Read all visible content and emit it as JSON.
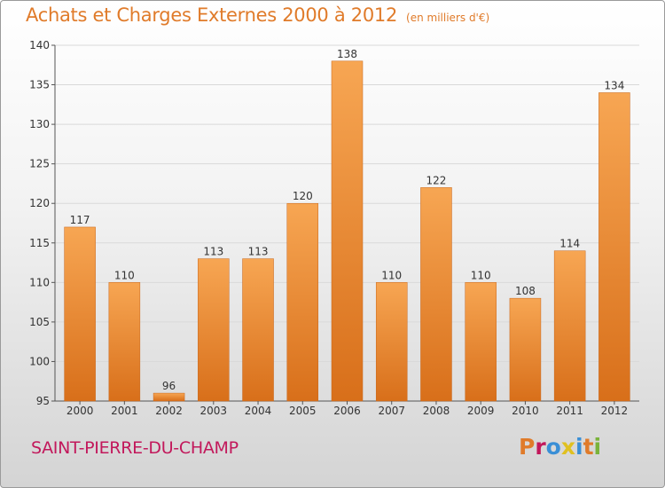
{
  "header": {
    "title": "Achats et Charges Externes 2000 à 2012",
    "subtitle": "(en milliers d'€)"
  },
  "footer": {
    "commune": "SAINT-PIERRE-DU-CHAMP",
    "logo": "Proxiti"
  },
  "colors": {
    "title": "#e07b2a",
    "commune": "#c2185b",
    "bar_light": "#f7a653",
    "bar_dark": "#d86f1a",
    "logo_letters": [
      "#e07b2a",
      "#c2185b",
      "#3a8fd6",
      "#e0c020",
      "#3a8fd6",
      "#e07b2a",
      "#7ab33a"
    ]
  },
  "chart_data": {
    "type": "bar",
    "title": "Achats et Charges Externes 2000 à 2012",
    "subtitle": "(en milliers d'€)",
    "categories": [
      "2000",
      "2001",
      "2002",
      "2003",
      "2004",
      "2005",
      "2006",
      "2007",
      "2008",
      "2009",
      "2010",
      "2011",
      "2012"
    ],
    "values": [
      117,
      110,
      96,
      113,
      113,
      120,
      138,
      110,
      122,
      110,
      108,
      114,
      134
    ],
    "xlabel": "",
    "ylabel": "",
    "ylim": [
      95,
      140
    ],
    "yticks": [
      95,
      100,
      105,
      110,
      115,
      120,
      125,
      130,
      135,
      140
    ],
    "grid": true,
    "legend": "none"
  }
}
